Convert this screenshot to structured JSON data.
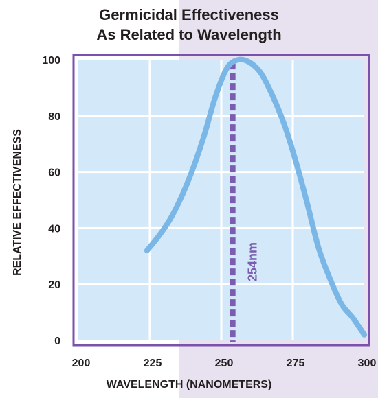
{
  "colors": {
    "right_bg": "#e8e1ef",
    "plot_bg": "#d3e8f8",
    "frame": "#7b52ab",
    "curve": "#7ab7e6",
    "marker": "#7b5cb0",
    "grid": "#ffffff",
    "text": "#231f20"
  },
  "chart_data": {
    "type": "line",
    "title_line1": "Germicidal Effectiveness",
    "title_line2": "As Related to Wavelength",
    "xlabel": "WAVELENGTH (NANOMETERS)",
    "ylabel": "RELATIVE EFFECTIVENESS",
    "xlim": [
      200,
      300
    ],
    "ylim": [
      0,
      100
    ],
    "x_ticks": [
      200,
      225,
      250,
      275,
      300
    ],
    "y_ticks": [
      0,
      20,
      40,
      60,
      80,
      100
    ],
    "grid": true,
    "series": [
      {
        "x": [
          224,
          228,
          232,
          236,
          240,
          244,
          248,
          252,
          256,
          260,
          264,
          268,
          272,
          276,
          280,
          284,
          288,
          292,
          296,
          300
        ],
        "y": [
          32,
          37,
          43,
          51,
          61,
          73,
          87,
          97,
          100,
          99,
          95,
          87,
          77,
          64,
          49,
          33,
          22,
          13,
          8,
          2
        ]
      }
    ],
    "marker_line": {
      "x": 254,
      "label": "254nm"
    }
  }
}
